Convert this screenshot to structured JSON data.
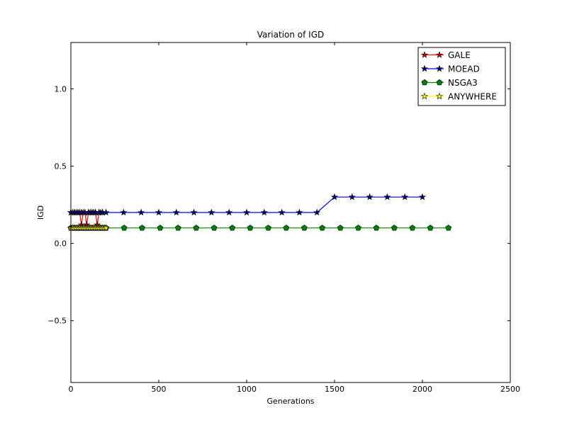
{
  "chart_data": {
    "type": "line",
    "title": "Variation of IGD",
    "xlabel": "Generations",
    "ylabel": "IGD",
    "xlim": [
      0,
      2500
    ],
    "ylim": [
      -0.9,
      1.3
    ],
    "xticks": [
      0,
      500,
      1000,
      1500,
      2000,
      2500
    ],
    "yticks": [
      -0.5,
      0.0,
      0.5,
      1.0
    ],
    "xtick_labels": [
      "0",
      "500",
      "1000",
      "1500",
      "2000",
      "2500"
    ],
    "ytick_labels": [
      "−0.5",
      "0.0",
      "0.5",
      "1.0"
    ],
    "grid": false,
    "legend_position": "top-right",
    "series": [
      {
        "name": "GALE",
        "color": "#ff0000",
        "marker_color": "#cc0000",
        "marker": "star",
        "x": [
          0,
          10,
          20,
          30,
          40,
          50,
          60,
          70,
          80,
          90,
          100,
          110,
          120,
          130,
          140,
          150,
          160,
          170,
          180
        ],
        "y": [
          0.2,
          0.2,
          0.2,
          0.2,
          0.2,
          0.2,
          0.12,
          0.2,
          0.2,
          0.12,
          0.2,
          0.2,
          0.2,
          0.2,
          0.2,
          0.12,
          0.2,
          0.2,
          0.2
        ]
      },
      {
        "name": "MOEAD",
        "color": "#0000ff",
        "marker_color": "#000080",
        "marker": "star",
        "x": [
          0,
          20,
          40,
          60,
          80,
          100,
          120,
          140,
          160,
          180,
          200,
          300,
          400,
          500,
          600,
          700,
          800,
          900,
          1000,
          1100,
          1200,
          1300,
          1400,
          1500,
          1600,
          1700,
          1800,
          1900,
          2000
        ],
        "y": [
          0.2,
          0.2,
          0.2,
          0.2,
          0.2,
          0.2,
          0.2,
          0.2,
          0.2,
          0.2,
          0.2,
          0.2,
          0.2,
          0.2,
          0.2,
          0.2,
          0.2,
          0.2,
          0.2,
          0.2,
          0.2,
          0.2,
          0.2,
          0.3,
          0.3,
          0.3,
          0.3,
          0.3,
          0.3
        ]
      },
      {
        "name": "NSGA3",
        "color": "#008000",
        "marker_color": "#008000",
        "marker": "pentagon",
        "x": [
          0,
          10,
          20,
          30,
          40,
          50,
          60,
          70,
          80,
          90,
          100,
          110,
          120,
          130,
          140,
          150,
          160,
          170,
          180,
          190,
          200,
          303,
          405,
          508,
          610,
          713,
          815,
          918,
          1020,
          1123,
          1225,
          1328,
          1430,
          1533,
          1635,
          1738,
          1840,
          1943,
          2045,
          2148
        ],
        "y": [
          0.1,
          0.1,
          0.1,
          0.1,
          0.1,
          0.1,
          0.1,
          0.1,
          0.1,
          0.1,
          0.1,
          0.1,
          0.1,
          0.1,
          0.1,
          0.1,
          0.1,
          0.1,
          0.1,
          0.1,
          0.1,
          0.1,
          0.1,
          0.1,
          0.1,
          0.1,
          0.1,
          0.1,
          0.1,
          0.1,
          0.1,
          0.1,
          0.1,
          0.1,
          0.1,
          0.1,
          0.1,
          0.1,
          0.1,
          0.1
        ]
      },
      {
        "name": "ANYWHERE",
        "color": "#ffff00",
        "marker_color": "#ffff00",
        "marker": "star",
        "x": [
          0,
          10,
          20,
          30,
          40,
          50,
          60,
          70,
          80,
          90,
          100,
          110,
          120,
          130,
          140,
          150,
          160,
          170,
          180,
          190,
          200
        ],
        "y": [
          0.1,
          0.1,
          0.1,
          0.1,
          0.1,
          0.1,
          0.1,
          0.1,
          0.1,
          0.1,
          0.1,
          0.1,
          0.1,
          0.1,
          0.1,
          0.1,
          0.1,
          0.1,
          0.1,
          0.1,
          0.1
        ]
      }
    ]
  }
}
